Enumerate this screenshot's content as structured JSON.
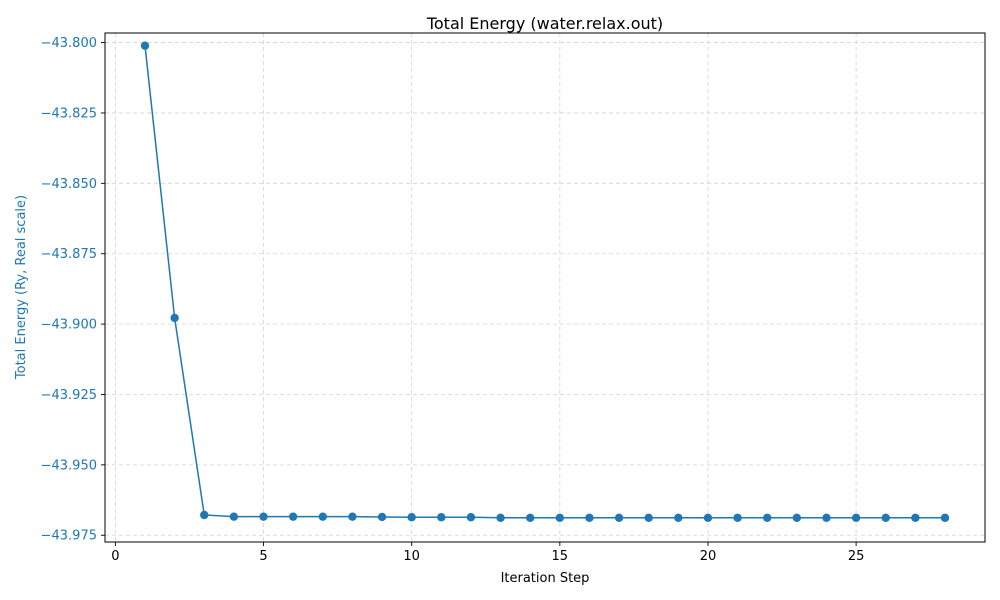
{
  "chart_data": {
    "type": "line",
    "title": "Total Energy (water.relax.out)",
    "xlabel": "Iteration Step",
    "ylabel": "Total Energy (Ry, Real scale)",
    "xlim": [
      -0.35,
      29.35
    ],
    "ylim": [
      -43.9774,
      -43.7966
    ],
    "xticks": [
      0,
      5,
      10,
      15,
      20,
      25
    ],
    "xtick_labels": [
      "0",
      "5",
      "10",
      "15",
      "20",
      "25"
    ],
    "yticks": [
      -43.8,
      -43.825,
      -43.85,
      -43.875,
      -43.9,
      -43.925,
      -43.95,
      -43.975
    ],
    "ytick_labels": [
      "−43.800",
      "−43.825",
      "−43.850",
      "−43.875",
      "−43.900",
      "−43.925",
      "−43.950",
      "−43.975"
    ],
    "grid": true,
    "colors": {
      "series": "#1f77b4",
      "grid": "#d3d3d3",
      "axis": "#000000",
      "ylabel": "#1f77b4"
    },
    "series": [
      {
        "x": [
          1,
          2,
          3,
          4,
          5,
          6,
          7,
          8,
          9,
          10,
          11,
          12,
          13,
          14,
          15,
          16,
          17,
          18,
          19,
          20,
          21,
          22,
          23,
          24,
          25,
          26,
          27,
          28
        ],
        "values": [
          -43.8011,
          -43.8978,
          -43.9678,
          -43.9684,
          -43.9684,
          -43.9684,
          -43.9684,
          -43.9684,
          -43.9685,
          -43.9686,
          -43.9686,
          -43.9686,
          -43.9688,
          -43.9688,
          -43.9688,
          -43.9688,
          -43.9688,
          -43.9688,
          -43.9688,
          -43.9688,
          -43.9688,
          -43.9688,
          -43.9688,
          -43.9688,
          -43.9688,
          -43.9688,
          -43.9688,
          -43.9688
        ]
      }
    ]
  }
}
